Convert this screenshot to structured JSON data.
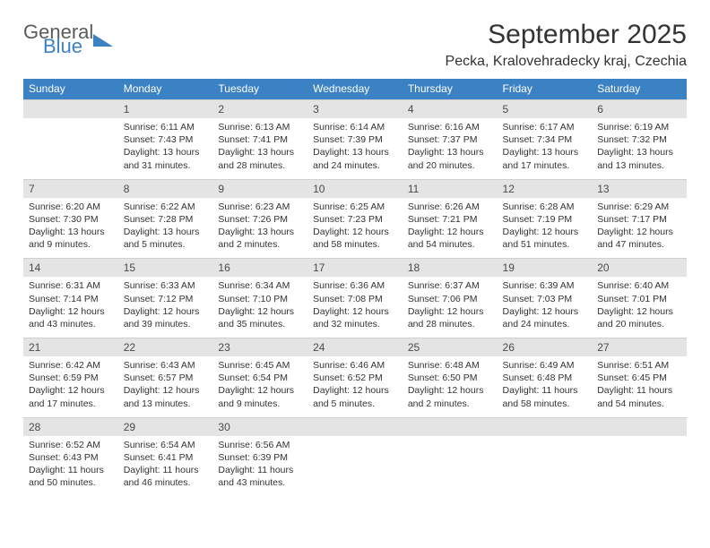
{
  "brand": {
    "general": "General",
    "blue": "Blue"
  },
  "title": "September 2025",
  "location": "Pecka, Kralovehradecky kraj, Czechia",
  "colors": {
    "header_bg": "#3b82c4",
    "header_text": "#ffffff",
    "daynum_bg": "#e4e4e4",
    "text": "#333333",
    "logo_gray": "#5b5b5b",
    "logo_blue": "#3b82c4"
  },
  "dow": [
    "Sunday",
    "Monday",
    "Tuesday",
    "Wednesday",
    "Thursday",
    "Friday",
    "Saturday"
  ],
  "weeks": [
    {
      "nums": [
        "",
        "1",
        "2",
        "3",
        "4",
        "5",
        "6"
      ],
      "cells": [
        null,
        {
          "sunrise": "Sunrise: 6:11 AM",
          "sunset": "Sunset: 7:43 PM",
          "day1": "Daylight: 13 hours",
          "day2": "and 31 minutes."
        },
        {
          "sunrise": "Sunrise: 6:13 AM",
          "sunset": "Sunset: 7:41 PM",
          "day1": "Daylight: 13 hours",
          "day2": "and 28 minutes."
        },
        {
          "sunrise": "Sunrise: 6:14 AM",
          "sunset": "Sunset: 7:39 PM",
          "day1": "Daylight: 13 hours",
          "day2": "and 24 minutes."
        },
        {
          "sunrise": "Sunrise: 6:16 AM",
          "sunset": "Sunset: 7:37 PM",
          "day1": "Daylight: 13 hours",
          "day2": "and 20 minutes."
        },
        {
          "sunrise": "Sunrise: 6:17 AM",
          "sunset": "Sunset: 7:34 PM",
          "day1": "Daylight: 13 hours",
          "day2": "and 17 minutes."
        },
        {
          "sunrise": "Sunrise: 6:19 AM",
          "sunset": "Sunset: 7:32 PM",
          "day1": "Daylight: 13 hours",
          "day2": "and 13 minutes."
        }
      ]
    },
    {
      "nums": [
        "7",
        "8",
        "9",
        "10",
        "11",
        "12",
        "13"
      ],
      "cells": [
        {
          "sunrise": "Sunrise: 6:20 AM",
          "sunset": "Sunset: 7:30 PM",
          "day1": "Daylight: 13 hours",
          "day2": "and 9 minutes."
        },
        {
          "sunrise": "Sunrise: 6:22 AM",
          "sunset": "Sunset: 7:28 PM",
          "day1": "Daylight: 13 hours",
          "day2": "and 5 minutes."
        },
        {
          "sunrise": "Sunrise: 6:23 AM",
          "sunset": "Sunset: 7:26 PM",
          "day1": "Daylight: 13 hours",
          "day2": "and 2 minutes."
        },
        {
          "sunrise": "Sunrise: 6:25 AM",
          "sunset": "Sunset: 7:23 PM",
          "day1": "Daylight: 12 hours",
          "day2": "and 58 minutes."
        },
        {
          "sunrise": "Sunrise: 6:26 AM",
          "sunset": "Sunset: 7:21 PM",
          "day1": "Daylight: 12 hours",
          "day2": "and 54 minutes."
        },
        {
          "sunrise": "Sunrise: 6:28 AM",
          "sunset": "Sunset: 7:19 PM",
          "day1": "Daylight: 12 hours",
          "day2": "and 51 minutes."
        },
        {
          "sunrise": "Sunrise: 6:29 AM",
          "sunset": "Sunset: 7:17 PM",
          "day1": "Daylight: 12 hours",
          "day2": "and 47 minutes."
        }
      ]
    },
    {
      "nums": [
        "14",
        "15",
        "16",
        "17",
        "18",
        "19",
        "20"
      ],
      "cells": [
        {
          "sunrise": "Sunrise: 6:31 AM",
          "sunset": "Sunset: 7:14 PM",
          "day1": "Daylight: 12 hours",
          "day2": "and 43 minutes."
        },
        {
          "sunrise": "Sunrise: 6:33 AM",
          "sunset": "Sunset: 7:12 PM",
          "day1": "Daylight: 12 hours",
          "day2": "and 39 minutes."
        },
        {
          "sunrise": "Sunrise: 6:34 AM",
          "sunset": "Sunset: 7:10 PM",
          "day1": "Daylight: 12 hours",
          "day2": "and 35 minutes."
        },
        {
          "sunrise": "Sunrise: 6:36 AM",
          "sunset": "Sunset: 7:08 PM",
          "day1": "Daylight: 12 hours",
          "day2": "and 32 minutes."
        },
        {
          "sunrise": "Sunrise: 6:37 AM",
          "sunset": "Sunset: 7:06 PM",
          "day1": "Daylight: 12 hours",
          "day2": "and 28 minutes."
        },
        {
          "sunrise": "Sunrise: 6:39 AM",
          "sunset": "Sunset: 7:03 PM",
          "day1": "Daylight: 12 hours",
          "day2": "and 24 minutes."
        },
        {
          "sunrise": "Sunrise: 6:40 AM",
          "sunset": "Sunset: 7:01 PM",
          "day1": "Daylight: 12 hours",
          "day2": "and 20 minutes."
        }
      ]
    },
    {
      "nums": [
        "21",
        "22",
        "23",
        "24",
        "25",
        "26",
        "27"
      ],
      "cells": [
        {
          "sunrise": "Sunrise: 6:42 AM",
          "sunset": "Sunset: 6:59 PM",
          "day1": "Daylight: 12 hours",
          "day2": "and 17 minutes."
        },
        {
          "sunrise": "Sunrise: 6:43 AM",
          "sunset": "Sunset: 6:57 PM",
          "day1": "Daylight: 12 hours",
          "day2": "and 13 minutes."
        },
        {
          "sunrise": "Sunrise: 6:45 AM",
          "sunset": "Sunset: 6:54 PM",
          "day1": "Daylight: 12 hours",
          "day2": "and 9 minutes."
        },
        {
          "sunrise": "Sunrise: 6:46 AM",
          "sunset": "Sunset: 6:52 PM",
          "day1": "Daylight: 12 hours",
          "day2": "and 5 minutes."
        },
        {
          "sunrise": "Sunrise: 6:48 AM",
          "sunset": "Sunset: 6:50 PM",
          "day1": "Daylight: 12 hours",
          "day2": "and 2 minutes."
        },
        {
          "sunrise": "Sunrise: 6:49 AM",
          "sunset": "Sunset: 6:48 PM",
          "day1": "Daylight: 11 hours",
          "day2": "and 58 minutes."
        },
        {
          "sunrise": "Sunrise: 6:51 AM",
          "sunset": "Sunset: 6:45 PM",
          "day1": "Daylight: 11 hours",
          "day2": "and 54 minutes."
        }
      ]
    },
    {
      "nums": [
        "28",
        "29",
        "30",
        "",
        "",
        "",
        ""
      ],
      "cells": [
        {
          "sunrise": "Sunrise: 6:52 AM",
          "sunset": "Sunset: 6:43 PM",
          "day1": "Daylight: 11 hours",
          "day2": "and 50 minutes."
        },
        {
          "sunrise": "Sunrise: 6:54 AM",
          "sunset": "Sunset: 6:41 PM",
          "day1": "Daylight: 11 hours",
          "day2": "and 46 minutes."
        },
        {
          "sunrise": "Sunrise: 6:56 AM",
          "sunset": "Sunset: 6:39 PM",
          "day1": "Daylight: 11 hours",
          "day2": "and 43 minutes."
        },
        null,
        null,
        null,
        null
      ]
    }
  ]
}
